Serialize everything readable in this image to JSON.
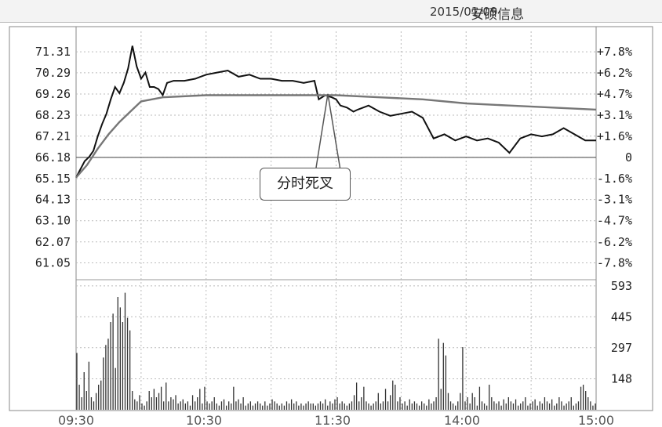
{
  "title": {
    "name": "安硕信息",
    "date": "2015/01/09"
  },
  "annotation": "分时死叉",
  "chart_data": {
    "type": "line",
    "title": "安硕信息 2015/01/09",
    "price_axis": {
      "ticks": [
        "71.31",
        "70.29",
        "69.26",
        "68.23",
        "67.21",
        "66.18",
        "65.15",
        "64.13",
        "63.10",
        "62.07",
        "61.05"
      ],
      "min": 60.5,
      "max": 72.0
    },
    "pct_axis": {
      "ticks": [
        "+7.8%",
        "+6.2%",
        "+4.7%",
        "+3.1%",
        "+1.6%",
        "0",
        "-1.6%",
        "-3.1%",
        "-4.7%",
        "-6.2%",
        "-7.8%"
      ]
    },
    "volume_axis": {
      "ticks": [
        "593",
        "445",
        "297",
        "148"
      ],
      "max": 600
    },
    "x_ticks": [
      "09:30",
      "10:30",
      "11:30",
      "14:00",
      "15:00"
    ],
    "baseline_price": 66.18,
    "series": [
      {
        "color": "#111111",
        "x": [
          0,
          2,
          4,
          6,
          8,
          10,
          12,
          14,
          16,
          18,
          20,
          22,
          24,
          26,
          28,
          30,
          32,
          34,
          36,
          38,
          40,
          42,
          45,
          50,
          55,
          60,
          65,
          70,
          75,
          80,
          85,
          90,
          95,
          100,
          105,
          110,
          112,
          115,
          118,
          120,
          122,
          125,
          128,
          130,
          135,
          140,
          145,
          150,
          155,
          160,
          165,
          170,
          175,
          180,
          185,
          190,
          195,
          200,
          205,
          210,
          215,
          220,
          225,
          230,
          235,
          240
        ],
        "values": [
          65.2,
          65.6,
          66.0,
          66.2,
          66.5,
          67.2,
          67.8,
          68.3,
          69.0,
          69.6,
          69.3,
          69.8,
          70.5,
          71.6,
          70.6,
          70.0,
          70.3,
          69.6,
          69.6,
          69.5,
          69.2,
          69.8,
          69.9,
          69.9,
          70.0,
          70.2,
          70.3,
          70.4,
          70.1,
          70.2,
          70.0,
          70.0,
          69.9,
          69.9,
          69.8,
          69.9,
          69.0,
          69.2,
          69.1,
          69.0,
          68.7,
          68.6,
          68.4,
          68.5,
          68.7,
          68.4,
          68.2,
          68.3,
          68.4,
          68.1,
          67.1,
          67.3,
          67.0,
          67.2,
          67.0,
          67.1,
          66.9,
          66.4,
          67.1,
          67.3,
          67.2,
          67.3,
          67.6,
          67.3,
          67.0,
          67.0
        ]
      },
      {
        "color": "#777777",
        "x": [
          0,
          5,
          10,
          15,
          20,
          25,
          30,
          35,
          40,
          60,
          80,
          100,
          120,
          140,
          160,
          180,
          200,
          220,
          240
        ],
        "values": [
          65.2,
          65.8,
          66.6,
          67.3,
          67.9,
          68.4,
          68.9,
          69.0,
          69.1,
          69.2,
          69.2,
          69.2,
          69.2,
          69.1,
          69.0,
          68.8,
          68.7,
          68.6,
          68.5
        ]
      }
    ],
    "volume": [
      272,
      120,
      60,
      180,
      90,
      230,
      60,
      40,
      80,
      120,
      140,
      250,
      310,
      340,
      420,
      460,
      200,
      540,
      490,
      420,
      560,
      440,
      380,
      90,
      50,
      40,
      70,
      30,
      20,
      40,
      90,
      60,
      100,
      60,
      80,
      110,
      40,
      130,
      40,
      60,
      50,
      70,
      30,
      40,
      50,
      30,
      40,
      20,
      70,
      40,
      60,
      100,
      30,
      110,
      40,
      30,
      40,
      60,
      30,
      20,
      40,
      50,
      20,
      40,
      30,
      110,
      40,
      50,
      30,
      60,
      20,
      30,
      40,
      20,
      30,
      40,
      30,
      20,
      40,
      20,
      30,
      50,
      40,
      30,
      20,
      30,
      20,
      40,
      30,
      50,
      30,
      40,
      20,
      30,
      20,
      30,
      40,
      30,
      30,
      20,
      30,
      40,
      30,
      50,
      20,
      40,
      30,
      50,
      60,
      30,
      40,
      30,
      20,
      30,
      40,
      70,
      130,
      40,
      60,
      110,
      40,
      30,
      20,
      30,
      40,
      80,
      30,
      40,
      100,
      40,
      70,
      140,
      120,
      40,
      60,
      30,
      40,
      20,
      50,
      30,
      40,
      30,
      20,
      40,
      30,
      20,
      50,
      30,
      40,
      60,
      340,
      100,
      320,
      260,
      80,
      40,
      30,
      20,
      40,
      80,
      300,
      40,
      60,
      30,
      80,
      60,
      20,
      110,
      40,
      30,
      20,
      120,
      60,
      40,
      30,
      40,
      20,
      50,
      30,
      60,
      40,
      30,
      50,
      20,
      30,
      40,
      60,
      20,
      30,
      40,
      50,
      20,
      40,
      30,
      60,
      40,
      30,
      50,
      20,
      30,
      60,
      40,
      20,
      30,
      40,
      60,
      20,
      30,
      40,
      110,
      120,
      90,
      60,
      40,
      20,
      30
    ]
  }
}
